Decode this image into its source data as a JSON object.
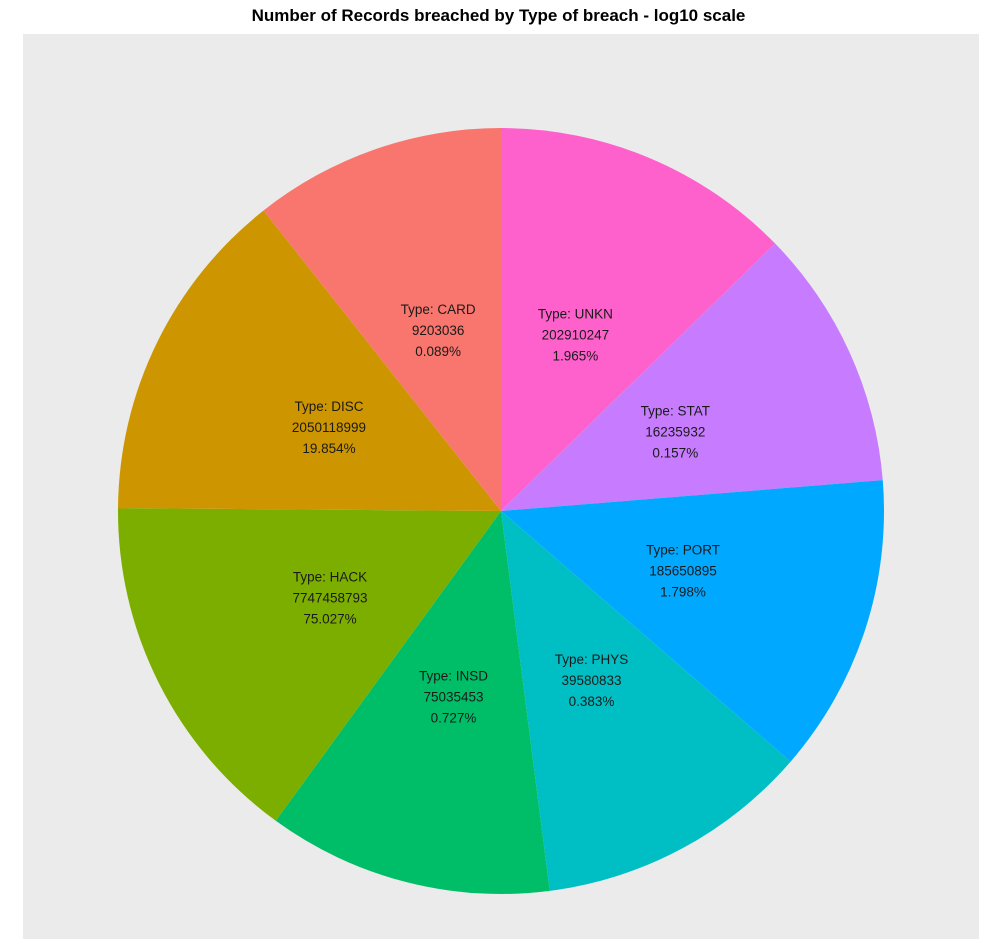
{
  "chart_data": {
    "type": "pie",
    "title": "Number of Records breached by Type of breach - log10 scale",
    "slices": [
      {
        "type": "UNKN",
        "label": "Type: UNKN",
        "records": 202910247,
        "records_label": "202910247",
        "percent": 1.965,
        "percent_label": "1.965%",
        "log10": 8.307,
        "color": "#FF61CC"
      },
      {
        "type": "STAT",
        "label": "Type: STAT",
        "records": 16235932,
        "records_label": "16235932",
        "percent": 0.157,
        "percent_label": "0.157%",
        "log10": 7.21,
        "color": "#C77CFF"
      },
      {
        "type": "PORT",
        "label": "Type: PORT",
        "records": 185650895,
        "records_label": "185650895",
        "percent": 1.798,
        "percent_label": "1.798%",
        "log10": 8.269,
        "color": "#00A9FF"
      },
      {
        "type": "PHYS",
        "label": "Type: PHYS",
        "records": 39580833,
        "records_label": "39580833",
        "percent": 0.383,
        "percent_label": "0.383%",
        "log10": 7.597,
        "color": "#00BFC4"
      },
      {
        "type": "INSD",
        "label": "Type: INSD",
        "records": 75035453,
        "records_label": "75035453",
        "percent": 0.727,
        "percent_label": "0.727%",
        "log10": 7.875,
        "color": "#00BE67"
      },
      {
        "type": "HACK",
        "label": "Type: HACK",
        "records": 7747458793,
        "records_label": "7747458793",
        "percent": 75.027,
        "percent_label": "75.027%",
        "log10": 9.889,
        "color": "#7CAE00"
      },
      {
        "type": "DISC",
        "label": "Type: DISC",
        "records": 2050118999,
        "records_label": "2050118999",
        "percent": 19.854,
        "percent_label": "19.854%",
        "log10": 9.312,
        "color": "#CD9600"
      },
      {
        "type": "CARD",
        "label": "Type: CARD",
        "records": 9203036,
        "records_label": "9203036",
        "percent": 0.089,
        "percent_label": "0.089%",
        "log10": 6.964,
        "color": "#F8766D"
      }
    ],
    "panel_background": "#EBEBEB",
    "legend": "none",
    "grid": false
  }
}
